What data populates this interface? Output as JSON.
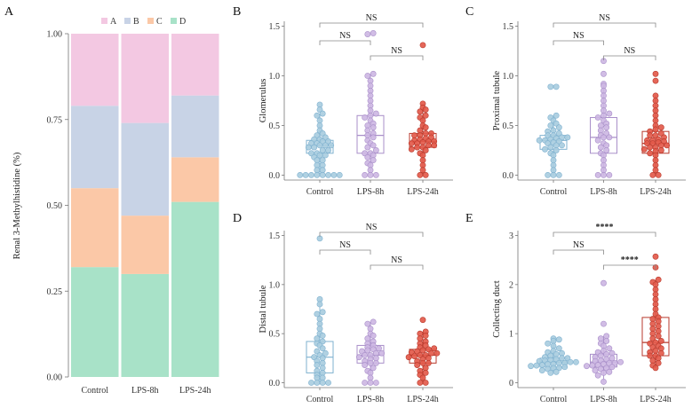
{
  "figure_labels": {
    "A": "A",
    "B": "B",
    "C": "C",
    "D": "D",
    "E": "E"
  },
  "colors": {
    "A": "#f3c8e2",
    "B": "#c8d3e6",
    "C": "#fbc8a7",
    "D": "#a8e2c8",
    "control_fill": "#a9cde0",
    "control_edge": "#7fb1cf",
    "lps8_fill": "#cdb7e3",
    "lps8_edge": "#a98fc9",
    "lps24_fill": "#e35a4b",
    "lps24_edge": "#b8392c"
  },
  "chart_data": [
    {
      "panel": "A",
      "type": "bar",
      "stacked": true,
      "ylabel": "Renal 3-Methylhistidine (%)",
      "xlabel": "",
      "ylim": [
        0,
        1
      ],
      "yticks": [
        "0.00",
        "0.25",
        "0.50",
        "0.75",
        "1.00"
      ],
      "categories": [
        "Control",
        "LPS-8h",
        "LPS-24h"
      ],
      "legend": [
        "A",
        "B",
        "C",
        "D"
      ],
      "legend_position": "top",
      "series": [
        {
          "name": "D",
          "values": [
            0.32,
            0.3,
            0.51
          ]
        },
        {
          "name": "C",
          "values": [
            0.23,
            0.17,
            0.13
          ]
        },
        {
          "name": "B",
          "values": [
            0.24,
            0.27,
            0.18
          ]
        },
        {
          "name": "A",
          "values": [
            0.21,
            0.26,
            0.18
          ]
        }
      ]
    },
    {
      "panel": "B",
      "type": "scatter",
      "subtype": "box-dotplot",
      "ylabel": "Glomerulus",
      "ylim": [
        -0.05,
        1.55
      ],
      "yticks": [
        "0.0",
        "0.5",
        "1.0",
        "1.5"
      ],
      "categories": [
        "Control",
        "LPS-8h",
        "LPS-24h"
      ],
      "series": [
        {
          "name": "Control",
          "q1": 0.22,
          "median": 0.3,
          "q3": 0.35,
          "whisker_low": 0.0,
          "whisker_high": 0.62,
          "values": [
            0.0,
            0.0,
            0.0,
            0.0,
            0.0,
            0.0,
            0.0,
            0.0,
            0.05,
            0.05,
            0.1,
            0.1,
            0.15,
            0.15,
            0.18,
            0.2,
            0.2,
            0.22,
            0.22,
            0.25,
            0.25,
            0.28,
            0.28,
            0.3,
            0.3,
            0.3,
            0.32,
            0.32,
            0.34,
            0.34,
            0.36,
            0.36,
            0.38,
            0.4,
            0.42,
            0.45,
            0.5,
            0.55,
            0.6,
            0.62,
            0.66,
            0.71
          ]
        },
        {
          "name": "LPS-8h",
          "q1": 0.22,
          "median": 0.4,
          "q3": 0.6,
          "whisker_low": 0.0,
          "whisker_high": 1.02,
          "values": [
            0.0,
            0.0,
            0.0,
            0.05,
            0.1,
            0.12,
            0.15,
            0.18,
            0.2,
            0.22,
            0.22,
            0.25,
            0.28,
            0.3,
            0.32,
            0.35,
            0.38,
            0.4,
            0.42,
            0.45,
            0.48,
            0.5,
            0.52,
            0.55,
            0.58,
            0.6,
            0.62,
            0.65,
            0.7,
            0.75,
            0.8,
            0.85,
            0.9,
            0.95,
            1.0,
            1.02,
            1.42,
            1.43
          ]
        },
        {
          "name": "LPS-24h",
          "q1": 0.28,
          "median": 0.34,
          "q3": 0.42,
          "whisker_low": 0.0,
          "whisker_high": 0.68,
          "values": [
            0.0,
            0.0,
            0.05,
            0.1,
            0.15,
            0.2,
            0.22,
            0.25,
            0.26,
            0.28,
            0.28,
            0.3,
            0.3,
            0.32,
            0.32,
            0.33,
            0.34,
            0.34,
            0.35,
            0.36,
            0.37,
            0.38,
            0.4,
            0.4,
            0.42,
            0.42,
            0.45,
            0.48,
            0.5,
            0.55,
            0.58,
            0.6,
            0.64,
            0.66,
            0.68,
            0.72,
            1.31
          ]
        }
      ],
      "comparisons": [
        {
          "from": 0,
          "to": 2,
          "label": "NS",
          "level": 2
        },
        {
          "from": 0,
          "to": 1,
          "label": "NS",
          "level": 0
        },
        {
          "from": 1,
          "to": 2,
          "label": "NS",
          "level": 1
        }
      ]
    },
    {
      "panel": "C",
      "type": "scatter",
      "subtype": "box-dotplot",
      "ylabel": "Proximal tubule",
      "ylim": [
        -0.05,
        1.55
      ],
      "yticks": [
        "0.0",
        "0.5",
        "1.0",
        "1.5"
      ],
      "categories": [
        "Control",
        "LPS-8h",
        "LPS-24h"
      ],
      "series": [
        {
          "name": "Control",
          "q1": 0.26,
          "median": 0.35,
          "q3": 0.4,
          "whisker_low": 0.0,
          "whisker_high": 0.6,
          "values": [
            0.0,
            0.0,
            0.0,
            0.05,
            0.1,
            0.15,
            0.2,
            0.22,
            0.25,
            0.26,
            0.28,
            0.3,
            0.3,
            0.32,
            0.33,
            0.34,
            0.35,
            0.35,
            0.36,
            0.37,
            0.38,
            0.38,
            0.4,
            0.4,
            0.42,
            0.44,
            0.45,
            0.48,
            0.5,
            0.52,
            0.55,
            0.58,
            0.6,
            0.89,
            0.89
          ]
        },
        {
          "name": "LPS-8h",
          "q1": 0.22,
          "median": 0.38,
          "q3": 0.58,
          "whisker_low": 0.0,
          "whisker_high": 0.92,
          "values": [
            0.0,
            0.0,
            0.0,
            0.05,
            0.1,
            0.15,
            0.2,
            0.22,
            0.25,
            0.28,
            0.3,
            0.32,
            0.35,
            0.38,
            0.38,
            0.4,
            0.42,
            0.45,
            0.48,
            0.5,
            0.52,
            0.55,
            0.58,
            0.6,
            0.62,
            0.65,
            0.7,
            0.75,
            0.8,
            0.85,
            0.9,
            0.92,
            1.02,
            1.15
          ]
        },
        {
          "name": "LPS-24h",
          "q1": 0.22,
          "median": 0.32,
          "q3": 0.44,
          "whisker_low": 0.0,
          "whisker_high": 0.8,
          "values": [
            0.0,
            0.0,
            0.05,
            0.1,
            0.15,
            0.2,
            0.22,
            0.24,
            0.25,
            0.26,
            0.28,
            0.28,
            0.3,
            0.3,
            0.32,
            0.32,
            0.33,
            0.34,
            0.35,
            0.35,
            0.36,
            0.38,
            0.4,
            0.4,
            0.42,
            0.44,
            0.46,
            0.48,
            0.5,
            0.55,
            0.6,
            0.65,
            0.7,
            0.75,
            0.8,
            0.95,
            1.02
          ]
        }
      ],
      "comparisons": [
        {
          "from": 0,
          "to": 2,
          "label": "NS",
          "level": 2
        },
        {
          "from": 0,
          "to": 1,
          "label": "NS",
          "level": 0
        },
        {
          "from": 1,
          "to": 2,
          "label": "NS",
          "level": 1
        }
      ]
    },
    {
      "panel": "D",
      "type": "scatter",
      "subtype": "box-dotplot",
      "ylabel": "Distal tubule",
      "ylim": [
        -0.05,
        1.55
      ],
      "yticks": [
        "0.0",
        "0.5",
        "1.0",
        "1.5"
      ],
      "categories": [
        "Control",
        "LPS-8h",
        "LPS-24h"
      ],
      "series": [
        {
          "name": "Control",
          "q1": 0.1,
          "median": 0.26,
          "q3": 0.42,
          "whisker_low": 0.0,
          "whisker_high": 0.85,
          "values": [
            0.0,
            0.0,
            0.0,
            0.0,
            0.05,
            0.05,
            0.08,
            0.1,
            0.12,
            0.15,
            0.18,
            0.2,
            0.22,
            0.25,
            0.26,
            0.28,
            0.3,
            0.32,
            0.35,
            0.38,
            0.4,
            0.42,
            0.45,
            0.48,
            0.5,
            0.55,
            0.6,
            0.65,
            0.7,
            0.72,
            0.8,
            0.85,
            1.47
          ]
        },
        {
          "name": "LPS-8h",
          "q1": 0.2,
          "median": 0.28,
          "q3": 0.38,
          "whisker_low": 0.0,
          "whisker_high": 0.62,
          "values": [
            0.0,
            0.0,
            0.0,
            0.05,
            0.1,
            0.12,
            0.15,
            0.18,
            0.2,
            0.2,
            0.22,
            0.24,
            0.25,
            0.26,
            0.28,
            0.28,
            0.3,
            0.3,
            0.32,
            0.33,
            0.34,
            0.35,
            0.36,
            0.38,
            0.4,
            0.42,
            0.45,
            0.48,
            0.5,
            0.55,
            0.6,
            0.62
          ]
        },
        {
          "name": "LPS-24h",
          "q1": 0.2,
          "median": 0.28,
          "q3": 0.34,
          "whisker_low": 0.0,
          "whisker_high": 0.52,
          "values": [
            0.0,
            0.0,
            0.05,
            0.08,
            0.1,
            0.12,
            0.15,
            0.18,
            0.2,
            0.2,
            0.22,
            0.24,
            0.25,
            0.26,
            0.27,
            0.28,
            0.28,
            0.3,
            0.3,
            0.31,
            0.32,
            0.33,
            0.34,
            0.35,
            0.36,
            0.38,
            0.4,
            0.42,
            0.45,
            0.48,
            0.5,
            0.52,
            0.64
          ]
        }
      ],
      "comparisons": [
        {
          "from": 0,
          "to": 2,
          "label": "NS",
          "level": 2
        },
        {
          "from": 0,
          "to": 1,
          "label": "NS",
          "level": 0
        },
        {
          "from": 1,
          "to": 2,
          "label": "NS",
          "level": 1
        }
      ]
    },
    {
      "panel": "E",
      "type": "scatter",
      "subtype": "box-dotplot",
      "ylabel": "Collecting duct",
      "ylim": [
        -0.1,
        3.1
      ],
      "yticks": [
        "0",
        "1",
        "2",
        "3"
      ],
      "categories": [
        "Control",
        "LPS-8h",
        "LPS-24h"
      ],
      "series": [
        {
          "name": "Control",
          "q1": 0.32,
          "median": 0.42,
          "q3": 0.5,
          "whisker_low": 0.2,
          "whisker_high": 0.88,
          "values": [
            0.2,
            0.22,
            0.25,
            0.28,
            0.3,
            0.3,
            0.32,
            0.34,
            0.35,
            0.36,
            0.38,
            0.38,
            0.4,
            0.4,
            0.42,
            0.42,
            0.44,
            0.45,
            0.46,
            0.48,
            0.5,
            0.5,
            0.52,
            0.55,
            0.58,
            0.6,
            0.62,
            0.65,
            0.7,
            0.75,
            0.8,
            0.85,
            0.88,
            0.9
          ]
        },
        {
          "name": "LPS-8h",
          "q1": 0.32,
          "median": 0.42,
          "q3": 0.58,
          "whisker_low": 0.02,
          "whisker_high": 0.95,
          "values": [
            0.02,
            0.15,
            0.2,
            0.22,
            0.25,
            0.28,
            0.3,
            0.32,
            0.34,
            0.35,
            0.36,
            0.38,
            0.4,
            0.4,
            0.42,
            0.44,
            0.45,
            0.48,
            0.5,
            0.52,
            0.55,
            0.58,
            0.6,
            0.62,
            0.65,
            0.7,
            0.75,
            0.8,
            0.85,
            0.9,
            0.95,
            1.2,
            2.03
          ]
        },
        {
          "name": "LPS-24h",
          "q1": 0.55,
          "median": 0.82,
          "q3": 1.33,
          "whisker_low": 0.3,
          "whisker_high": 2.1,
          "values": [
            0.3,
            0.35,
            0.4,
            0.45,
            0.5,
            0.55,
            0.55,
            0.6,
            0.62,
            0.65,
            0.7,
            0.72,
            0.75,
            0.8,
            0.82,
            0.85,
            0.9,
            0.95,
            1.0,
            1.05,
            1.1,
            1.15,
            1.2,
            1.25,
            1.3,
            1.33,
            1.4,
            1.5,
            1.6,
            1.7,
            1.8,
            1.9,
            2.0,
            2.05,
            2.1,
            2.35,
            2.57
          ]
        }
      ],
      "comparisons": [
        {
          "from": 0,
          "to": 2,
          "label": "****",
          "level": 2
        },
        {
          "from": 0,
          "to": 1,
          "label": "NS",
          "level": 0
        },
        {
          "from": 1,
          "to": 2,
          "label": "****",
          "level": 1
        }
      ]
    }
  ]
}
